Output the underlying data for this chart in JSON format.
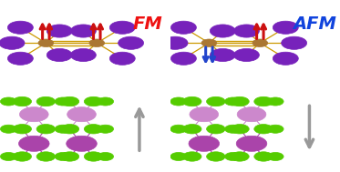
{
  "bg_color": "#ffffff",
  "fm_label": "FM",
  "afm_label": "AFM",
  "fm_color": "#ee1111",
  "afm_color": "#1144dd",
  "purple_i": "#7722bb",
  "brown_fe": "#aa7733",
  "green_se": "#55cc00",
  "pink_in": "#cc88cc",
  "dpurple_in": "#aa44aa",
  "gray_arrow": "#999999",
  "red_spin": "#cc1111",
  "blue_spin": "#2244cc",
  "gold_bond": "#cc9900"
}
